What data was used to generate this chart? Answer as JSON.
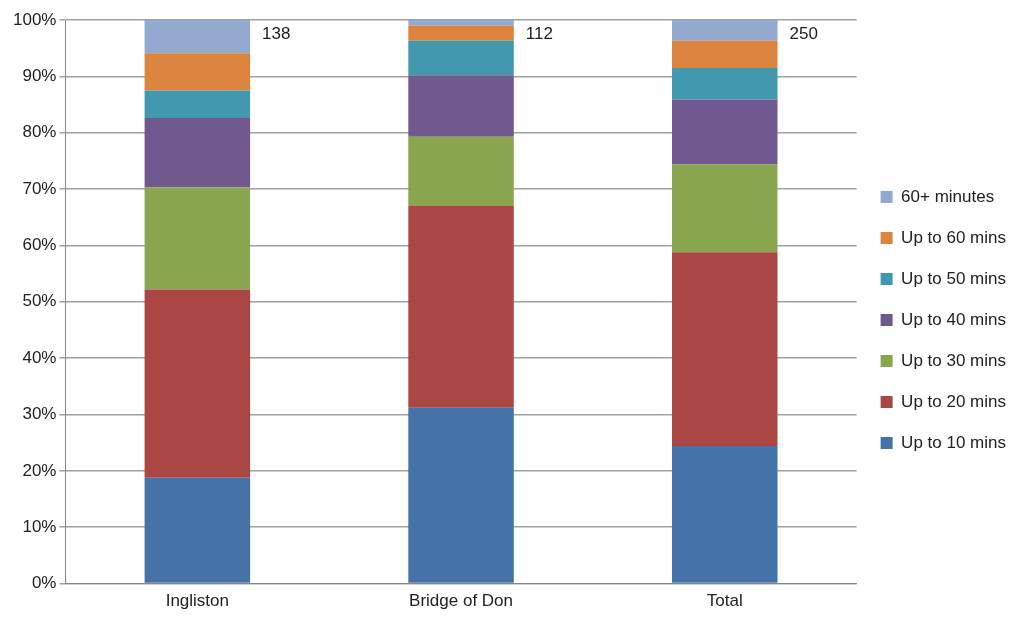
{
  "chart_data": {
    "type": "bar",
    "stacked": true,
    "categories": [
      "Ingliston",
      "Bridge of Don",
      "Total"
    ],
    "series": [
      {
        "name": "Up to 10 mins",
        "color": "#4572a7",
        "values": [
          18.8,
          31.2,
          24.4
        ]
      },
      {
        "name": "Up to 20 mins",
        "color": "#aa4643",
        "values": [
          33.4,
          35.8,
          34.4
        ]
      },
      {
        "name": "Up to 30 mins",
        "color": "#89a54e",
        "values": [
          18.1,
          12.3,
          15.6
        ]
      },
      {
        "name": "Up to 40 mins",
        "color": "#71588f",
        "values": [
          12.3,
          10.9,
          11.5
        ]
      },
      {
        "name": "Up to 50 mins",
        "color": "#4198af",
        "values": [
          4.9,
          6.1,
          5.6
        ]
      },
      {
        "name": "Up to 60 mins",
        "color": "#db843d",
        "values": [
          6.6,
          2.7,
          4.8
        ]
      },
      {
        "name": "60+ minutes",
        "color": "#93a9cf",
        "values": [
          5.9,
          1.0,
          3.7
        ]
      }
    ],
    "ylim": [
      0,
      100
    ],
    "yticks": [
      {
        "value": 0,
        "label": "0%"
      },
      {
        "value": 10,
        "label": "10%"
      },
      {
        "value": 20,
        "label": "20%"
      },
      {
        "value": 30,
        "label": "30%"
      },
      {
        "value": 40,
        "label": "40%"
      },
      {
        "value": 50,
        "label": "50%"
      },
      {
        "value": 60,
        "label": "60%"
      },
      {
        "value": 70,
        "label": "70%"
      },
      {
        "value": 80,
        "label": "80%"
      },
      {
        "value": 90,
        "label": "90%"
      },
      {
        "value": 100,
        "label": "100%"
      }
    ],
    "grid": "y",
    "legend": "right",
    "annotations": [
      "138",
      "112",
      "250"
    ]
  }
}
